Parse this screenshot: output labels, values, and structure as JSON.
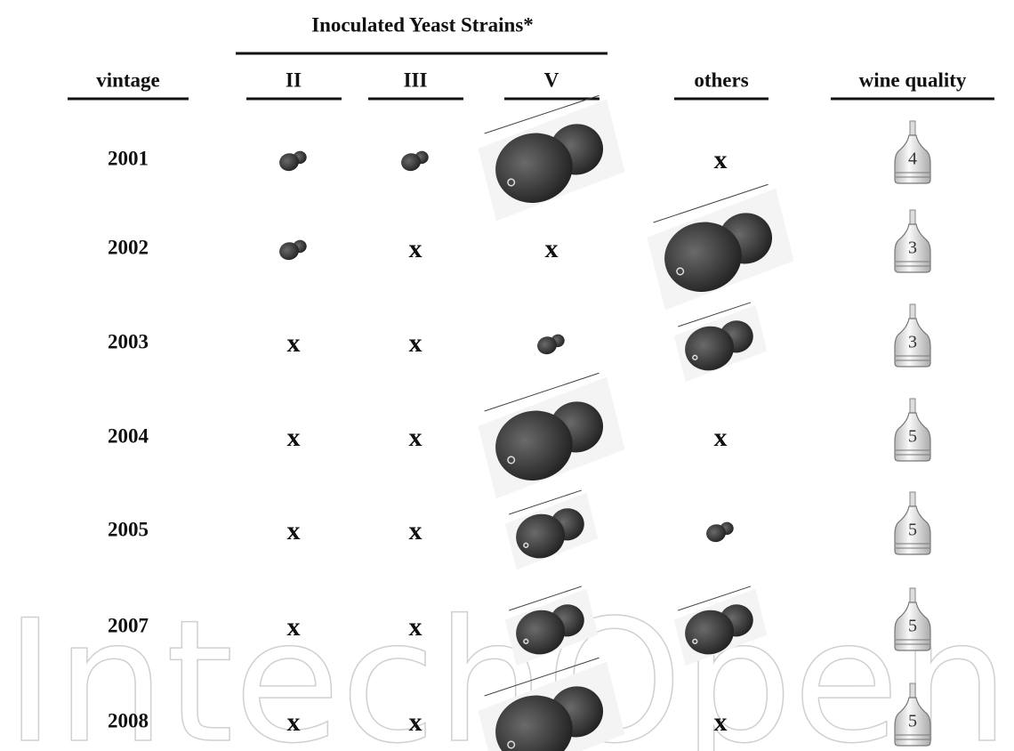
{
  "header": {
    "group": "Inoculated Yeast Strains*",
    "columns": [
      "vintage",
      "II",
      "III",
      "V",
      "others",
      "wine quality"
    ]
  },
  "rows": [
    {
      "vintage": "2001",
      "marks": [
        "x"
      ],
      "quality": "4"
    },
    {
      "vintage": "2002",
      "marks": [
        "x",
        "x"
      ],
      "quality": "3"
    },
    {
      "vintage": "2003",
      "marks": [
        "x",
        "x"
      ],
      "quality": "3"
    },
    {
      "vintage": "2004",
      "marks": [
        "x",
        "x",
        "x"
      ],
      "quality": "5"
    },
    {
      "vintage": "2005",
      "marks": [
        "x",
        "x"
      ],
      "quality": "5"
    },
    {
      "vintage": "2007",
      "marks": [
        "x",
        "x"
      ],
      "quality": "5"
    },
    {
      "vintage": "2008",
      "marks": [
        "x",
        "x",
        "x"
      ],
      "quality": "5"
    }
  ],
  "watermark": "IntechOpen"
}
